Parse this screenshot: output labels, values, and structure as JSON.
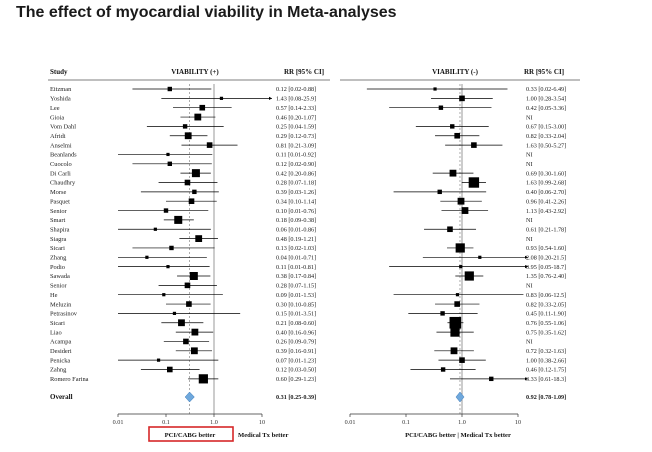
{
  "page": {
    "title": "The effect of myocardial viability in Meta-analyses"
  },
  "headers": {
    "study": "Study",
    "left_panel": "VIABILITY (+)",
    "right_panel": "VIABILITY (-)",
    "rr": "RR [95% CI]"
  },
  "overall_label": "Overall",
  "axis_labels": {
    "left": "PCI/CABG better",
    "right": "Medical Tx better",
    "right_combined": "PCI/CABG better | Medical Tx better"
  },
  "colors": {
    "highlight_box": "#d62728",
    "diamond": "#6fa8dc",
    "marker": "#000000"
  },
  "chart_data": {
    "type": "forest",
    "scale": "log",
    "xlim": [
      0.01,
      10
    ],
    "ticks": [
      {
        "value": 0.01,
        "label": "0.01"
      },
      {
        "value": 0.1,
        "label": "0.1"
      },
      {
        "value": 1,
        "label": "1.0"
      },
      {
        "value": 10,
        "label": "10"
      }
    ],
    "reference_line": 1,
    "studies": [
      "Eitzman",
      "Yoshida",
      "Lee",
      "Gioia",
      "Vom Dahl",
      "Afridi",
      "Anselmi",
      "Beanlands",
      "Cuocolo",
      "Di Carli",
      "Chaudhry",
      "Morse",
      "Pasquet",
      "Senior",
      "Smart",
      "Shapira",
      "Siagra",
      "Sicari",
      "Zhang",
      "Podio",
      "Sawada",
      "Senior",
      "He",
      "Meluzin",
      "Petrasinov",
      "Sicari",
      "Liao",
      "Acampa",
      "Desideri",
      "Penicka",
      "Zahng",
      "Romero Farina"
    ],
    "viability_pos": [
      {
        "rr": 0.12,
        "lo": 0.02,
        "hi": 0.88,
        "text": "0.12 [0.02-0.88]",
        "size": 2
      },
      {
        "rr": 1.43,
        "lo": 0.08,
        "hi": 25.9,
        "text": "1.43 [0.08-25.9]",
        "size": 1
      },
      {
        "rr": 0.57,
        "lo": 0.14,
        "hi": 2.33,
        "text": "0.57 [0.14-2.33]",
        "size": 3
      },
      {
        "rr": 0.46,
        "lo": 0.2,
        "hi": 1.07,
        "text": "0.46 [0.20-1.07]",
        "size": 4
      },
      {
        "rr": 0.25,
        "lo": 0.04,
        "hi": 1.59,
        "text": "0.25 [0.04-1.59]",
        "size": 2
      },
      {
        "rr": 0.29,
        "lo": 0.12,
        "hi": 0.73,
        "text": "0.29 [0.12-0.73]",
        "size": 4
      },
      {
        "rr": 0.81,
        "lo": 0.21,
        "hi": 3.09,
        "text": "0.81 [0.21-3.09]",
        "size": 3
      },
      {
        "rr": 0.11,
        "lo": 0.01,
        "hi": 0.92,
        "text": "0.11 [0.01-0.92]",
        "size": 1
      },
      {
        "rr": 0.12,
        "lo": 0.02,
        "hi": 0.9,
        "text": "0.12 [0.02-0.90]",
        "size": 2
      },
      {
        "rr": 0.42,
        "lo": 0.2,
        "hi": 0.86,
        "text": "0.42 [0.20-0.86]",
        "size": 5
      },
      {
        "rr": 0.28,
        "lo": 0.07,
        "hi": 1.18,
        "text": "0.28 [0.07-1.18]",
        "size": 3
      },
      {
        "rr": 0.39,
        "lo": 0.03,
        "hi": 1.26,
        "text": "0.39 [0.03-1.26]",
        "size": 2
      },
      {
        "rr": 0.34,
        "lo": 0.1,
        "hi": 1.14,
        "text": "0.34 [0.10-1.14]",
        "size": 3
      },
      {
        "rr": 0.1,
        "lo": 0.01,
        "hi": 0.76,
        "text": "0.10 [0.01-0.76]",
        "size": 2
      },
      {
        "rr": 0.18,
        "lo": 0.09,
        "hi": 0.38,
        "text": "0.18 [0.09-0.38]",
        "size": 5
      },
      {
        "rr": 0.06,
        "lo": 0.01,
        "hi": 0.86,
        "text": "0.06 [0.01-0.86]",
        "size": 1
      },
      {
        "rr": 0.48,
        "lo": 0.19,
        "hi": 1.21,
        "text": "0.48 [0.19-1.21]",
        "size": 4
      },
      {
        "rr": 0.13,
        "lo": 0.02,
        "hi": 1.03,
        "text": "0.13 [0.02-1.03]",
        "size": 2
      },
      {
        "rr": 0.04,
        "lo": 0.01,
        "hi": 0.71,
        "text": "0.04 [0.01-0.71]",
        "size": 1
      },
      {
        "rr": 0.11,
        "lo": 0.01,
        "hi": 0.81,
        "text": "0.11 [0.01-0.81]",
        "size": 1
      },
      {
        "rr": 0.38,
        "lo": 0.17,
        "hi": 0.84,
        "text": "0.38 [0.17-0.84]",
        "size": 5
      },
      {
        "rr": 0.28,
        "lo": 0.07,
        "hi": 1.15,
        "text": "0.28 [0.07-1.15]",
        "size": 3
      },
      {
        "rr": 0.09,
        "lo": 0.01,
        "hi": 1.53,
        "text": "0.09 [0.01-1.53]",
        "size": 1
      },
      {
        "rr": 0.3,
        "lo": 0.1,
        "hi": 0.85,
        "text": "0.30 [0.10-0.85]",
        "size": 3
      },
      {
        "rr": 0.15,
        "lo": 0.01,
        "hi": 3.51,
        "text": "0.15 [0.01-3.51]",
        "size": 1
      },
      {
        "rr": 0.21,
        "lo": 0.08,
        "hi": 0.6,
        "text": "0.21 [0.08-0.60]",
        "size": 4
      },
      {
        "rr": 0.4,
        "lo": 0.16,
        "hi": 0.96,
        "text": "0.40 [0.16-0.96]",
        "size": 4
      },
      {
        "rr": 0.26,
        "lo": 0.09,
        "hi": 0.79,
        "text": "0.26 [0.09-0.79]",
        "size": 3
      },
      {
        "rr": 0.39,
        "lo": 0.16,
        "hi": 0.91,
        "text": "0.39 [0.16-0.91]",
        "size": 4
      },
      {
        "rr": 0.07,
        "lo": 0.01,
        "hi": 1.23,
        "text": "0.07 [0.01-1.23]",
        "size": 1
      },
      {
        "rr": 0.12,
        "lo": 0.03,
        "hi": 0.5,
        "text": "0.12 [0.03-0.50]",
        "size": 3
      },
      {
        "rr": 0.6,
        "lo": 0.29,
        "hi": 1.23,
        "text": "0.60 [0.29-1.23]",
        "size": 6
      }
    ],
    "overall_pos": {
      "rr": 0.31,
      "lo": 0.25,
      "hi": 0.39,
      "text": "0.31 [0.25-0.39]"
    },
    "viability_neg": [
      {
        "rr": 0.33,
        "lo": 0.02,
        "hi": 6.49,
        "text": "0.33 [0.02-6.49]",
        "size": 1
      },
      {
        "rr": 1.0,
        "lo": 0.28,
        "hi": 3.54,
        "text": "1.00 [0.28-3.54]",
        "size": 3
      },
      {
        "rr": 0.42,
        "lo": 0.05,
        "hi": 3.36,
        "text": "0.42 [0.05-3.36]",
        "size": 2
      },
      {
        "na": true,
        "text": "NI"
      },
      {
        "rr": 0.67,
        "lo": 0.15,
        "hi": 3.0,
        "text": "0.67 [0.15-3.00]",
        "size": 2
      },
      {
        "rr": 0.82,
        "lo": 0.33,
        "hi": 2.04,
        "text": "0.82 [0.33-2.04]",
        "size": 3
      },
      {
        "rr": 1.63,
        "lo": 0.5,
        "hi": 5.27,
        "text": "1.63 [0.50-5.27]",
        "size": 3
      },
      {
        "na": true,
        "text": "NI"
      },
      {
        "na": true,
        "text": "NI"
      },
      {
        "rr": 0.69,
        "lo": 0.3,
        "hi": 1.6,
        "text": "0.69 [0.30-1.60]",
        "size": 4
      },
      {
        "rr": 1.63,
        "lo": 0.99,
        "hi": 2.68,
        "text": "1.63 [0.99-2.68]",
        "size": 7
      },
      {
        "rr": 0.4,
        "lo": 0.06,
        "hi": 2.7,
        "text": "0.40 [0.06-2.70]",
        "size": 2
      },
      {
        "rr": 0.96,
        "lo": 0.41,
        "hi": 2.26,
        "text": "0.96 [0.41-2.26]",
        "size": 4
      },
      {
        "rr": 1.13,
        "lo": 0.43,
        "hi": 2.92,
        "text": "1.13 [0.43-2.92]",
        "size": 4
      },
      {
        "na": true,
        "text": "NI"
      },
      {
        "rr": 0.61,
        "lo": 0.21,
        "hi": 1.78,
        "text": "0.61 [0.21-1.78]",
        "size": 3
      },
      {
        "na": true,
        "text": "NI"
      },
      {
        "rr": 0.93,
        "lo": 0.54,
        "hi": 1.6,
        "text": "0.93 [0.54-1.60]",
        "size": 6
      },
      {
        "rr": 2.08,
        "lo": 0.2,
        "hi": 21.5,
        "text": "2.08 [0.20-21.5]",
        "size": 1
      },
      {
        "rr": 0.95,
        "lo": 0.05,
        "hi": 18.7,
        "text": "0.95 [0.05-18.7]",
        "size": 1
      },
      {
        "rr": 1.35,
        "lo": 0.76,
        "hi": 2.4,
        "text": "1.35 [0.76-2.40]",
        "size": 6
      },
      {
        "na": true,
        "text": "NI"
      },
      {
        "rr": 0.83,
        "lo": 0.06,
        "hi": 12.5,
        "text": "0.83 [0.06-12.5]",
        "size": 1
      },
      {
        "rr": 0.82,
        "lo": 0.33,
        "hi": 2.05,
        "text": "0.82 [0.33-2.05]",
        "size": 3
      },
      {
        "rr": 0.45,
        "lo": 0.11,
        "hi": 1.9,
        "text": "0.45 [0.11-1.90]",
        "size": 2
      },
      {
        "rr": 0.76,
        "lo": 0.55,
        "hi": 1.06,
        "text": "0.76 [0.55-1.06]",
        "size": 8
      },
      {
        "rr": 0.75,
        "lo": 0.35,
        "hi": 1.62,
        "text": "0.75 [0.35-1.62]",
        "size": 6
      },
      {
        "na": true,
        "text": "NI"
      },
      {
        "rr": 0.72,
        "lo": 0.32,
        "hi": 1.63,
        "text": "0.72 [0.32-1.63]",
        "size": 4
      },
      {
        "rr": 1.0,
        "lo": 0.38,
        "hi": 2.66,
        "text": "1.00 [0.38-2.66]",
        "size": 3
      },
      {
        "rr": 0.46,
        "lo": 0.12,
        "hi": 1.75,
        "text": "0.46 [0.12-1.75]",
        "size": 2
      },
      {
        "rr": 3.33,
        "lo": 0.61,
        "hi": 18.3,
        "text": "3.33 [0.61-18.3]",
        "size": 2
      }
    ],
    "overall_neg": {
      "rr": 0.92,
      "lo": 0.78,
      "hi": 1.09,
      "text": "0.92 [0.78-1.09]"
    }
  }
}
